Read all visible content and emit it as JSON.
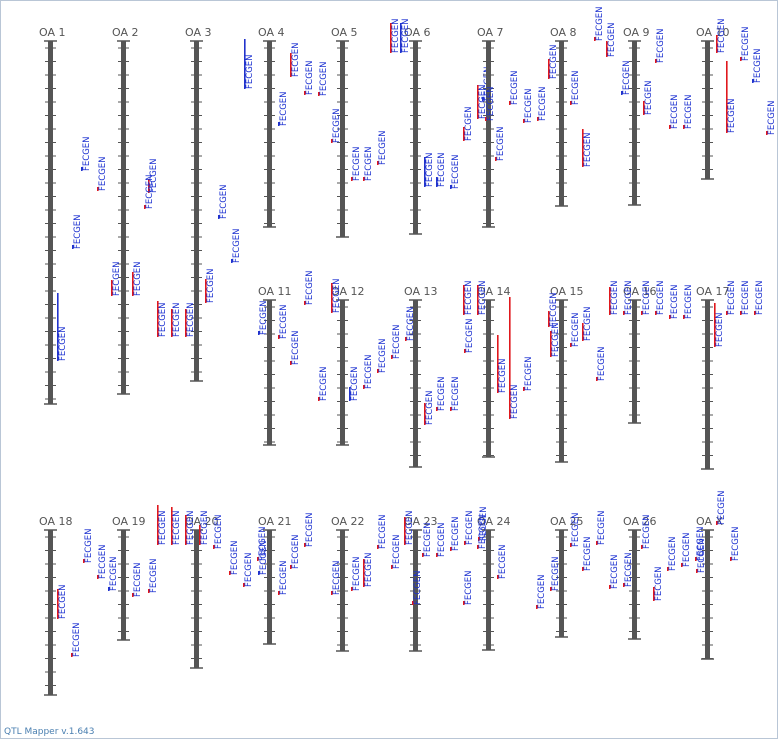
{
  "footer": {
    "version": "QTL Mapper v.1.643"
  },
  "colors": {
    "chromosome": "#555555",
    "text": "#1a2fd0",
    "red": "#e0181d",
    "blue": "#2233cc"
  },
  "chromosomes": [
    {
      "label": "OA 1",
      "qtls": [
        {
          "text": "FECGEN",
          "bar": "blue",
          "barLen": 68
        },
        {
          "text": "FECGEN",
          "bar": "blue",
          "barLen": 4
        },
        {
          "text": "FECGEN",
          "bar": "red",
          "barLen": 4
        },
        {
          "text": "FECGEN",
          "bar": "blue",
          "barLen": 4
        },
        {
          "text": "FECGEN",
          "bar": "red",
          "barLen": 16
        }
      ]
    },
    {
      "label": "OA 2",
      "qtls": [
        {
          "text": "FECGEN",
          "bar": "red",
          "barLen": 24
        },
        {
          "text": "FECGEN",
          "bar": "red",
          "barLen": 14
        },
        {
          "text": "FECGEN",
          "bar": "red",
          "barLen": 4
        }
      ]
    },
    {
      "label": "OA 3",
      "qtls": [
        {
          "text": "FECGEN",
          "bar": "red",
          "barLen": 36
        },
        {
          "text": "FECGEN",
          "bar": "red",
          "barLen": 28
        },
        {
          "text": "FECGEN",
          "bar": "red",
          "barLen": 28
        },
        {
          "text": "FECGEN",
          "bar": "blue",
          "barLen": 4
        },
        {
          "text": "FECGEN",
          "bar": "blue",
          "barLen": 4
        },
        {
          "text": "FECGEN",
          "bar": "red",
          "barLen": 24
        }
      ]
    },
    {
      "label": "OA 4",
      "qtls": [
        {
          "text": "FECGEN",
          "bar": "blue",
          "barLen": 50
        },
        {
          "text": "FECGEN",
          "bar": "blue",
          "barLen": 4
        },
        {
          "text": "FECGEN",
          "bar": "red",
          "barLen": 24
        },
        {
          "text": "FECGEN",
          "bar": "red",
          "barLen": 4
        },
        {
          "text": "FECGEN",
          "bar": "red",
          "barLen": 4
        }
      ]
    },
    {
      "label": "OA 5",
      "qtls": [
        {
          "text": "FECGEN",
          "bar": "red",
          "barLen": 4
        },
        {
          "text": "FECGEN",
          "bar": "red",
          "barLen": 4
        },
        {
          "text": "FECGEN",
          "bar": "red",
          "barLen": 4
        },
        {
          "text": "FECGEN",
          "bar": "red",
          "barLen": 4
        }
      ]
    },
    {
      "label": "OA 6",
      "qtls": [
        {
          "text": "FECGEN",
          "bar": "red",
          "barLen": 30
        },
        {
          "text": "FECGEN",
          "bar": "blue",
          "barLen": 30
        },
        {
          "text": "FECGEN",
          "bar": "blue",
          "barLen": 30
        },
        {
          "text": "FECGEN",
          "bar": "blue",
          "barLen": 10
        },
        {
          "text": "FECGEN",
          "bar": "blue",
          "barLen": 4
        },
        {
          "text": "FECGEN",
          "bar": "blue",
          "barLen": 4
        }
      ]
    },
    {
      "label": "OA 7",
      "qtls": [
        {
          "text": "FECGEN",
          "bar": "red",
          "barLen": 14
        },
        {
          "text": "FECGEN",
          "bar": "red",
          "barLen": 34
        },
        {
          "text": "FECGEN",
          "bar": "red",
          "barLen": 4
        },
        {
          "text": "FECGEN",
          "bar": "red",
          "barLen": 4
        },
        {
          "text": "FECGEN",
          "bar": "red",
          "barLen": 4
        },
        {
          "text": "FECGEN",
          "bar": "red",
          "barLen": 4
        },
        {
          "text": "FECGEN",
          "bar": "red",
          "barLen": 4
        }
      ]
    },
    {
      "label": "OA 8",
      "qtls": [
        {
          "text": "FECGEN",
          "bar": "red",
          "barLen": 20
        },
        {
          "text": "FECGEN",
          "bar": "red",
          "barLen": 4
        },
        {
          "text": "FECGEN",
          "bar": "red",
          "barLen": 38
        },
        {
          "text": "FECGEN",
          "bar": "red",
          "barLen": 4
        },
        {
          "text": "FECGEN",
          "bar": "red",
          "barLen": 16
        }
      ]
    },
    {
      "label": "OA 9",
      "qtls": [
        {
          "text": "FECGEN",
          "bar": "blue",
          "barLen": 4
        },
        {
          "text": "FECGEN",
          "bar": "red",
          "barLen": 14
        },
        {
          "text": "FECGEN",
          "bar": "red",
          "barLen": 4
        },
        {
          "text": "FECGEN",
          "bar": "red",
          "barLen": 4
        },
        {
          "text": "FECGEN",
          "bar": "red",
          "barLen": 4
        }
      ]
    },
    {
      "label": "OA 10",
      "qtls": [
        {
          "text": "FECGEN",
          "bar": "red",
          "barLen": 18
        },
        {
          "text": "FECGEN",
          "bar": "red",
          "barLen": 72
        },
        {
          "text": "FECGEN",
          "bar": "red",
          "barLen": 4
        },
        {
          "text": "FECGEN",
          "bar": "blue",
          "barLen": 4
        },
        {
          "text": "FECGEN",
          "bar": "red",
          "barLen": 4
        }
      ]
    },
    {
      "label": "OA 11",
      "qtls": [
        {
          "text": "FECGEN",
          "bar": "blue",
          "barLen": 4
        },
        {
          "text": "FECGEN",
          "bar": "red",
          "barLen": 4
        },
        {
          "text": "FECGEN",
          "bar": "red",
          "barLen": 4
        },
        {
          "text": "FECGEN",
          "bar": "red",
          "barLen": 4
        },
        {
          "text": "FECGEN",
          "bar": "red",
          "barLen": 4
        }
      ]
    },
    {
      "label": "OA 12",
      "qtls": [
        {
          "text": "FECGEN",
          "bar": "red",
          "barLen": 30
        },
        {
          "text": "FECGEN",
          "bar": "blue",
          "barLen": 14
        },
        {
          "text": "FECGEN",
          "bar": "red",
          "barLen": 4
        },
        {
          "text": "FECGEN",
          "bar": "red",
          "barLen": 4
        },
        {
          "text": "FECGEN",
          "bar": "red",
          "barLen": 4
        },
        {
          "text": "FECGEN",
          "bar": "red",
          "barLen": 4
        }
      ]
    },
    {
      "label": "OA 13",
      "qtls": [
        {
          "text": "FECGEN",
          "bar": "red",
          "barLen": 22
        },
        {
          "text": "FECGEN",
          "bar": "red",
          "barLen": 4
        },
        {
          "text": "FECGEN",
          "bar": "red",
          "barLen": 4
        },
        {
          "text": "FECGEN",
          "bar": "red",
          "barLen": 4
        }
      ]
    },
    {
      "label": "OA 14",
      "qtls": [
        {
          "text": "FECGEN",
          "bar": "red",
          "barLen": 30
        },
        {
          "text": "FECGEN",
          "bar": "red",
          "barLen": 30
        },
        {
          "text": "FECGEN",
          "bar": "red",
          "barLen": 58
        },
        {
          "text": "FECGEN",
          "bar": "red",
          "barLen": 122
        },
        {
          "text": "FECGEN",
          "bar": "red",
          "barLen": 4
        }
      ]
    },
    {
      "label": "OA 15",
      "qtls": [
        {
          "text": "FECGEN",
          "bar": "red",
          "barLen": 16
        },
        {
          "text": "FECGEN",
          "bar": "red",
          "barLen": 26
        },
        {
          "text": "FECGEN",
          "bar": "red",
          "barLen": 4
        },
        {
          "text": "FECGEN",
          "bar": "red",
          "barLen": 18
        },
        {
          "text": "FECGEN",
          "bar": "red",
          "barLen": 4
        }
      ]
    },
    {
      "label": "OA 16",
      "qtls": [
        {
          "text": "FECGEN",
          "bar": "red",
          "barLen": 28
        },
        {
          "text": "FECGEN",
          "bar": "red",
          "barLen": 4
        },
        {
          "text": "FECGEN",
          "bar": "red",
          "barLen": 4
        },
        {
          "text": "FECGEN",
          "bar": "red",
          "barLen": 4
        },
        {
          "text": "FECGEN",
          "bar": "red",
          "barLen": 4
        },
        {
          "text": "FECGEN",
          "bar": "red",
          "barLen": 4
        }
      ]
    },
    {
      "label": "OA 17",
      "qtls": [
        {
          "text": "FECGEN",
          "bar": "red",
          "barLen": 44
        },
        {
          "text": "FECGEN",
          "bar": "red",
          "barLen": 4
        },
        {
          "text": "FECGEN",
          "bar": "red",
          "barLen": 4
        },
        {
          "text": "FECGEN",
          "bar": "red",
          "barLen": 4
        }
      ]
    },
    {
      "label": "OA 18",
      "qtls": [
        {
          "text": "FECGEN",
          "bar": "red",
          "barLen": 30
        },
        {
          "text": "FECGEN",
          "bar": "red",
          "barLen": 4
        },
        {
          "text": "FECGEN",
          "bar": "red",
          "barLen": 4
        },
        {
          "text": "FECGEN",
          "bar": "red",
          "barLen": 4
        }
      ]
    },
    {
      "label": "OA 19",
      "qtls": [
        {
          "text": "FECGEN",
          "bar": "blue",
          "barLen": 4
        },
        {
          "text": "FECGEN",
          "bar": "red",
          "barLen": 4
        },
        {
          "text": "FECGEN",
          "bar": "red",
          "barLen": 4
        }
      ]
    },
    {
      "label": "OA 20",
      "qtls": [
        {
          "text": "FECGEN",
          "bar": "red",
          "barLen": 40
        },
        {
          "text": "FECGEN",
          "bar": "red",
          "barLen": 38
        },
        {
          "text": "FECGEN",
          "bar": "red",
          "barLen": 30
        },
        {
          "text": "FECGEN",
          "bar": "red",
          "barLen": 20
        },
        {
          "text": "FECGEN",
          "bar": "red",
          "barLen": 4
        },
        {
          "text": "FECGEN",
          "bar": "red",
          "barLen": 4
        },
        {
          "text": "FECGEN",
          "bar": "red",
          "barLen": 4
        },
        {
          "text": "FECGEN",
          "bar": "red",
          "barLen": 4
        }
      ]
    },
    {
      "label": "OA 21",
      "qtls": [
        {
          "text": "FECGEN",
          "bar": "blue",
          "barLen": 4
        },
        {
          "text": "FECGEN",
          "bar": "red",
          "barLen": 4
        },
        {
          "text": "FECGEN",
          "bar": "red",
          "barLen": 4
        },
        {
          "text": "FECGEN",
          "bar": "red",
          "barLen": 4
        }
      ]
    },
    {
      "label": "OA 22",
      "qtls": [
        {
          "text": "FECGEN",
          "bar": "red",
          "barLen": 4
        },
        {
          "text": "FECGEN",
          "bar": "red",
          "barLen": 4
        },
        {
          "text": "FECGEN",
          "bar": "red",
          "barLen": 28
        },
        {
          "text": "FECGEN",
          "bar": "red",
          "barLen": 4
        },
        {
          "text": "FECGEN",
          "bar": "red",
          "barLen": 4
        }
      ]
    },
    {
      "label": "OA 23",
      "qtls": [
        {
          "text": "FECGEN",
          "bar": "red",
          "barLen": 28
        },
        {
          "text": "FECGEN",
          "bar": "red",
          "barLen": 4
        },
        {
          "text": "FECGEN",
          "bar": "red",
          "barLen": 4
        },
        {
          "text": "FECGEN",
          "bar": "red",
          "barLen": 4
        },
        {
          "text": "FECGEN",
          "bar": "red",
          "barLen": 4
        },
        {
          "text": "FECGEN",
          "bar": "red",
          "barLen": 4
        },
        {
          "text": "FECGEN",
          "bar": "red",
          "barLen": 4
        }
      ]
    },
    {
      "label": "OA 24",
      "qtls": [
        {
          "text": "FECGEN",
          "bar": "red",
          "barLen": 4
        },
        {
          "text": "FECGEN",
          "bar": "red",
          "barLen": 4
        },
        {
          "text": "FECGEN",
          "bar": "red",
          "barLen": 4
        }
      ]
    },
    {
      "label": "OA 25",
      "qtls": [
        {
          "text": "FECGEN",
          "bar": "red",
          "barLen": 4
        },
        {
          "text": "FECGEN",
          "bar": "red",
          "barLen": 4
        },
        {
          "text": "FECGEN",
          "bar": "red",
          "barLen": 4
        },
        {
          "text": "FECGEN",
          "bar": "red",
          "barLen": 4
        },
        {
          "text": "FECGEN",
          "bar": "red",
          "barLen": 4
        }
      ]
    },
    {
      "label": "OA 26",
      "qtls": [
        {
          "text": "FECGEN",
          "bar": "red",
          "barLen": 4
        },
        {
          "text": "FECGEN",
          "bar": "red",
          "barLen": 4
        },
        {
          "text": "FECGEN",
          "bar": "red",
          "barLen": 4
        },
        {
          "text": "FECGEN",
          "bar": "red",
          "barLen": 14
        },
        {
          "text": "FECGEN",
          "bar": "red",
          "barLen": 4
        },
        {
          "text": "FECGEN",
          "bar": "red",
          "barLen": 4
        },
        {
          "text": "FECGEN",
          "bar": "red",
          "barLen": 4
        }
      ]
    },
    {
      "label": "OA X",
      "qtls": [
        {
          "text": "FECGEN",
          "bar": "red",
          "barLen": 4
        },
        {
          "text": "FECGEN",
          "bar": "red",
          "barLen": 4
        },
        {
          "text": "FECGEN",
          "bar": "red",
          "barLen": 4
        }
      ]
    }
  ]
}
